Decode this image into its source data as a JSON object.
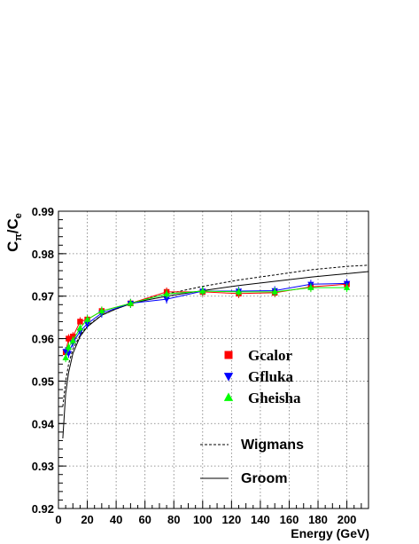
{
  "chart_data": {
    "type": "scatter",
    "ylabel": "C_π/C_e",
    "xlabel": "Energy (GeV)",
    "xlim": [
      0,
      215
    ],
    "ylim": [
      0.92,
      0.99
    ],
    "x_ticks": [
      0,
      20,
      40,
      60,
      80,
      100,
      120,
      140,
      160,
      180,
      200
    ],
    "y_ticks": [
      0.92,
      0.93,
      0.94,
      0.95,
      0.96,
      0.97,
      0.98,
      0.99
    ],
    "y_tick_labels": [
      "0.92",
      "0.93",
      "0.94",
      "0.95",
      "0.96",
      "0.97",
      "0.98",
      "0.99"
    ],
    "grid": true,
    "legend_position": "lower-right",
    "series": [
      {
        "name": "Gcalor",
        "marker": "square",
        "color": "#ff0000",
        "x": [
          5,
          7,
          10,
          15,
          20,
          30,
          50,
          75,
          100,
          125,
          150,
          175,
          200
        ],
        "y": [
          0.9568,
          0.96,
          0.9605,
          0.964,
          0.9645,
          0.9665,
          0.9683,
          0.971,
          0.971,
          0.9706,
          0.9708,
          0.9722,
          0.9728
        ]
      },
      {
        "name": "Gfluka",
        "marker": "triangle-down",
        "color": "#0000ff",
        "x": [
          5,
          7,
          10,
          15,
          20,
          30,
          50,
          75,
          100,
          125,
          150,
          175,
          200
        ],
        "y": [
          0.957,
          0.9565,
          0.959,
          0.9617,
          0.9635,
          0.966,
          0.9683,
          0.9693,
          0.9712,
          0.9712,
          0.9713,
          0.9728,
          0.973
        ]
      },
      {
        "name": "Gheisha",
        "marker": "triangle-up",
        "color": "#00ff00",
        "x": [
          5,
          7,
          10,
          15,
          20,
          30,
          50,
          75,
          100,
          125,
          150,
          175,
          200
        ],
        "y": [
          0.9555,
          0.958,
          0.9595,
          0.9625,
          0.9645,
          0.9665,
          0.9683,
          0.9705,
          0.9712,
          0.971,
          0.971,
          0.972,
          0.972
        ]
      }
    ],
    "curves": [
      {
        "name": "Wigmans",
        "style": "dashed",
        "color": "#000000",
        "x": [
          3,
          5,
          7,
          10,
          15,
          20,
          30,
          40,
          50,
          60,
          75,
          100,
          125,
          150,
          175,
          200,
          215
        ],
        "y": [
          0.944,
          0.95,
          0.954,
          0.9575,
          0.9608,
          0.963,
          0.9655,
          0.967,
          0.9683,
          0.9693,
          0.9705,
          0.9723,
          0.9738,
          0.975,
          0.9762,
          0.977,
          0.9773
        ]
      },
      {
        "name": "Groom",
        "style": "solid",
        "color": "#000000",
        "x": [
          3,
          5,
          7,
          10,
          15,
          20,
          30,
          40,
          50,
          60,
          75,
          100,
          125,
          150,
          175,
          200,
          215
        ],
        "y": [
          0.9365,
          0.947,
          0.952,
          0.9565,
          0.9605,
          0.9628,
          0.9655,
          0.967,
          0.9682,
          0.969,
          0.97,
          0.9713,
          0.9725,
          0.9735,
          0.9745,
          0.9753,
          0.9758
        ]
      }
    ]
  }
}
